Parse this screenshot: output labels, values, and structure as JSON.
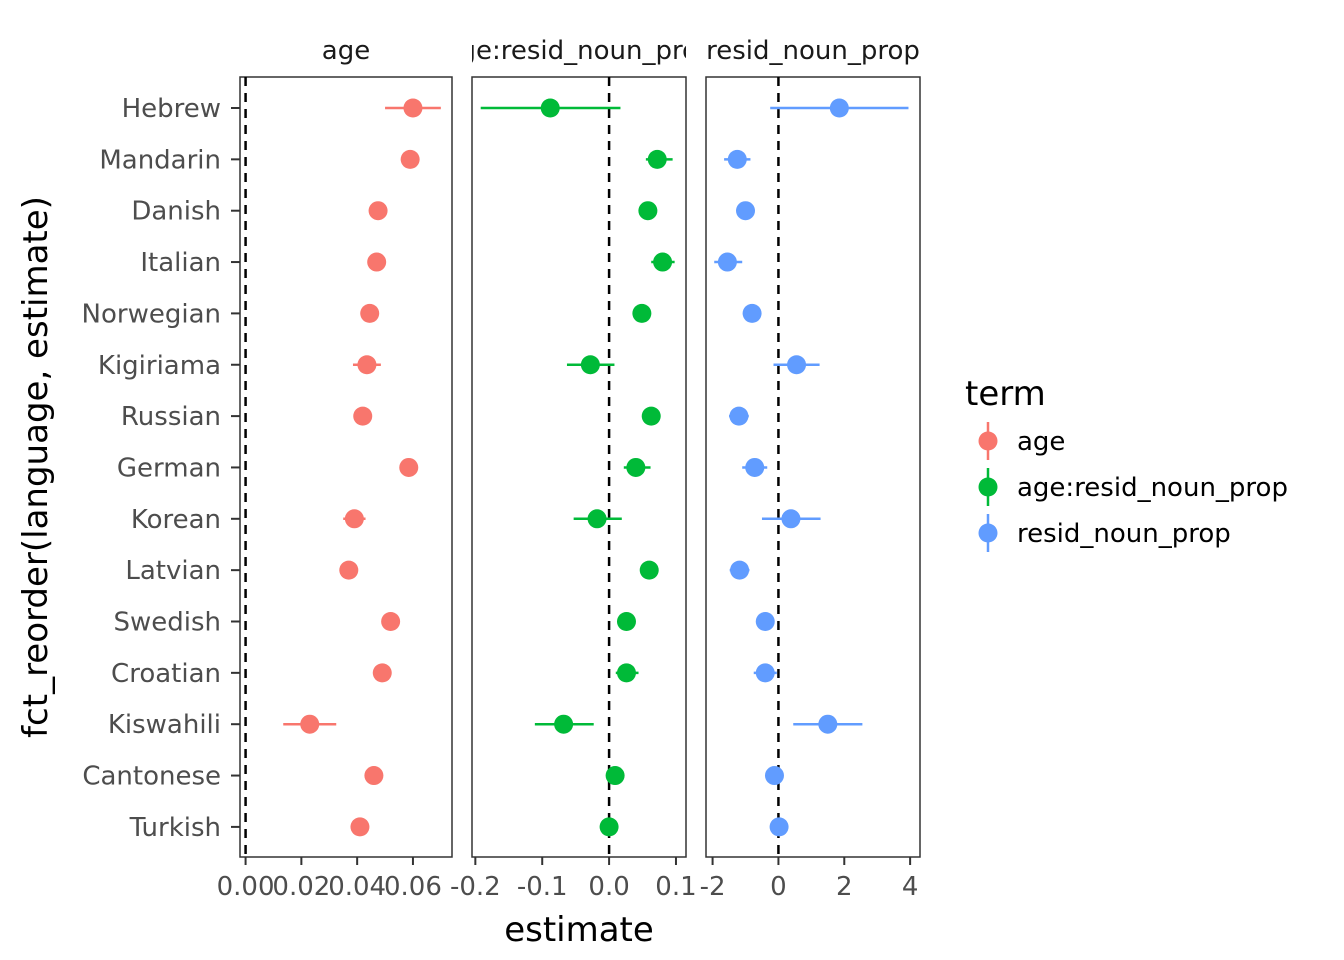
{
  "chart_data": {
    "type": "scatter",
    "title": "",
    "xlabel": "estimate",
    "ylabel": "fct_reorder(language, estimate)",
    "categories": [
      "Hebrew",
      "Mandarin",
      "Danish",
      "Italian",
      "Norwegian",
      "Kigiriama",
      "Russian",
      "German",
      "Korean",
      "Latvian",
      "Swedish",
      "Croatian",
      "Kiswahili",
      "Cantonese",
      "Turkish"
    ],
    "legend": {
      "title": "term",
      "position": "right",
      "items": [
        {
          "label": "age",
          "color": "#F8766D"
        },
        {
          "label": "age:resid_noun_prop",
          "color": "#00BA38"
        },
        {
          "label": "resid_noun_prop",
          "color": "#619CFF"
        }
      ]
    },
    "panels": [
      {
        "strip": "age",
        "color": "#F8766D",
        "xlim": [
          -0.002,
          0.074
        ],
        "ticks": [
          0.0,
          0.02,
          0.04,
          0.06
        ],
        "tick_labels": [
          "0.00",
          "0.02",
          "0.04",
          "0.06"
        ],
        "points": [
          {
            "estimate": 0.06,
            "lo": 0.05,
            "hi": 0.07
          },
          {
            "estimate": 0.059,
            "lo": 0.0575,
            "hi": 0.0605
          },
          {
            "estimate": 0.0475,
            "lo": 0.046,
            "hi": 0.049
          },
          {
            "estimate": 0.047,
            "lo": 0.045,
            "hi": 0.049
          },
          {
            "estimate": 0.0445,
            "lo": 0.043,
            "hi": 0.046
          },
          {
            "estimate": 0.0435,
            "lo": 0.0385,
            "hi": 0.0485
          },
          {
            "estimate": 0.042,
            "lo": 0.0405,
            "hi": 0.0435
          },
          {
            "estimate": 0.0585,
            "lo": 0.057,
            "hi": 0.06
          },
          {
            "estimate": 0.039,
            "lo": 0.035,
            "hi": 0.043
          },
          {
            "estimate": 0.037,
            "lo": 0.0355,
            "hi": 0.0385
          },
          {
            "estimate": 0.052,
            "lo": 0.0505,
            "hi": 0.0535
          },
          {
            "estimate": 0.049,
            "lo": 0.0475,
            "hi": 0.0505
          },
          {
            "estimate": 0.023,
            "lo": 0.0135,
            "hi": 0.0325
          },
          {
            "estimate": 0.046,
            "lo": 0.0445,
            "hi": 0.0475
          },
          {
            "estimate": 0.041,
            "lo": 0.0395,
            "hi": 0.0425
          }
        ]
      },
      {
        "strip": "age:resid_noun_prop",
        "color": "#00BA38",
        "xlim": [
          -0.205,
          0.115
        ],
        "ticks": [
          -0.2,
          -0.1,
          0.0,
          0.1
        ],
        "tick_labels": [
          "-0.2",
          "-0.1",
          "0.0",
          "0.1"
        ],
        "points": [
          {
            "estimate": -0.088,
            "lo": -0.192,
            "hi": 0.017
          },
          {
            "estimate": 0.072,
            "lo": 0.055,
            "hi": 0.095
          },
          {
            "estimate": 0.058,
            "lo": 0.05,
            "hi": 0.066
          },
          {
            "estimate": 0.08,
            "lo": 0.063,
            "hi": 0.098
          },
          {
            "estimate": 0.049,
            "lo": 0.041,
            "hi": 0.057
          },
          {
            "estimate": -0.028,
            "lo": -0.063,
            "hi": 0.008
          },
          {
            "estimate": 0.063,
            "lo": 0.055,
            "hi": 0.071
          },
          {
            "estimate": 0.04,
            "lo": 0.022,
            "hi": 0.062
          },
          {
            "estimate": -0.018,
            "lo": -0.053,
            "hi": 0.019
          },
          {
            "estimate": 0.06,
            "lo": 0.052,
            "hi": 0.068
          },
          {
            "estimate": 0.026,
            "lo": 0.018,
            "hi": 0.034
          },
          {
            "estimate": 0.026,
            "lo": 0.01,
            "hi": 0.044
          },
          {
            "estimate": -0.068,
            "lo": -0.111,
            "hi": -0.023
          },
          {
            "estimate": 0.009,
            "lo": 0.001,
            "hi": 0.017
          },
          {
            "estimate": 0.0,
            "lo": -0.008,
            "hi": 0.008
          }
        ]
      },
      {
        "strip": "resid_noun_prop",
        "color": "#619CFF",
        "xlim": [
          -2.2,
          4.3
        ],
        "ticks": [
          -2,
          0,
          2,
          4
        ],
        "tick_labels": [
          "-2",
          "0",
          "2",
          "4"
        ],
        "points": [
          {
            "estimate": 1.85,
            "lo": -0.25,
            "hi": 3.95
          },
          {
            "estimate": -1.25,
            "lo": -1.65,
            "hi": -0.85
          },
          {
            "estimate": -1.0,
            "lo": -1.25,
            "hi": -0.75
          },
          {
            "estimate": -1.55,
            "lo": -1.95,
            "hi": -1.1
          },
          {
            "estimate": -0.8,
            "lo": -1.05,
            "hi": -0.55
          },
          {
            "estimate": 0.55,
            "lo": -0.15,
            "hi": 1.25
          },
          {
            "estimate": -1.2,
            "lo": -1.5,
            "hi": -0.9
          },
          {
            "estimate": -0.72,
            "lo": -1.1,
            "hi": -0.34
          },
          {
            "estimate": 0.38,
            "lo": -0.5,
            "hi": 1.28
          },
          {
            "estimate": -1.18,
            "lo": -1.48,
            "hi": -0.88
          },
          {
            "estimate": -0.4,
            "lo": -0.62,
            "hi": -0.18
          },
          {
            "estimate": -0.4,
            "lo": -0.75,
            "hi": -0.05
          },
          {
            "estimate": 1.5,
            "lo": 0.45,
            "hi": 2.55
          },
          {
            "estimate": -0.12,
            "lo": -0.3,
            "hi": 0.06
          },
          {
            "estimate": 0.02,
            "lo": -0.16,
            "hi": 0.2
          }
        ]
      }
    ]
  }
}
